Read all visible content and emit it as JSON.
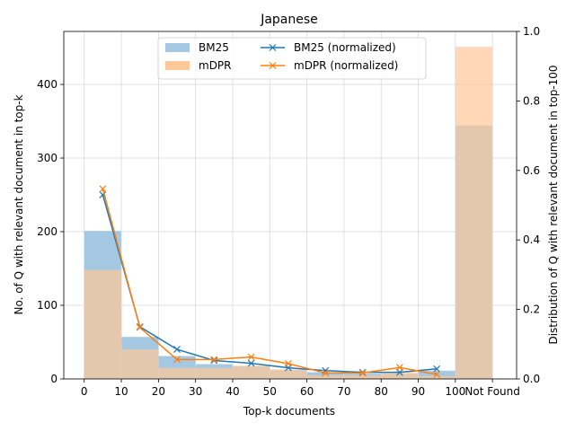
{
  "chart_data": {
    "type": "bar",
    "title": "Japanese",
    "xlabel": "Top-k documents",
    "ylabel_left": "No. of Q with relevant document in top-k",
    "ylabel_right": "Distribution of Q with relevant document in top-100",
    "x_tick_labels": [
      "0",
      "10",
      "20",
      "30",
      "40",
      "50",
      "60",
      "70",
      "80",
      "90",
      "100",
      "Not Found"
    ],
    "y_left_ticks": [
      "0",
      "100",
      "200",
      "300",
      "400"
    ],
    "y_right_ticks": [
      "0.0",
      "0.2",
      "0.4",
      "0.6",
      "0.8",
      "1.0"
    ],
    "ylim_left": [
      0,
      472
    ],
    "ylim_right": [
      0,
      1.0
    ],
    "grid": true,
    "legend_placement": "upper-center",
    "bins": [
      "0-10",
      "10-20",
      "20-30",
      "30-40",
      "40-50",
      "50-60",
      "60-70",
      "70-80",
      "80-90",
      "90-100",
      "Not Found"
    ],
    "bar_series": [
      {
        "name": "BM25",
        "color": "#a4c8e2",
        "values": [
          201,
          57,
          31,
          20,
          17,
          12,
          9,
          7,
          7,
          11,
          344
        ]
      },
      {
        "name": "mDPR",
        "color": "#ffc899",
        "values": [
          148,
          40,
          15,
          15,
          18,
          13,
          5,
          5,
          9,
          4,
          451
        ]
      }
    ],
    "line_series": [
      {
        "name": "BM25 (normalized)",
        "color": "#1f77b4",
        "marker": "x",
        "x": [
          5,
          15,
          25,
          35,
          45,
          55,
          65,
          75,
          85,
          95
        ],
        "values": [
          0.53,
          0.15,
          0.085,
          0.053,
          0.045,
          0.032,
          0.024,
          0.019,
          0.019,
          0.029
        ]
      },
      {
        "name": "mDPR (normalized)",
        "color": "#ff7f0e",
        "marker": "x",
        "x": [
          5,
          15,
          25,
          35,
          45,
          55,
          65,
          75,
          85,
          95
        ],
        "values": [
          0.547,
          0.148,
          0.056,
          0.056,
          0.063,
          0.044,
          0.017,
          0.017,
          0.033,
          0.013
        ]
      }
    ]
  }
}
